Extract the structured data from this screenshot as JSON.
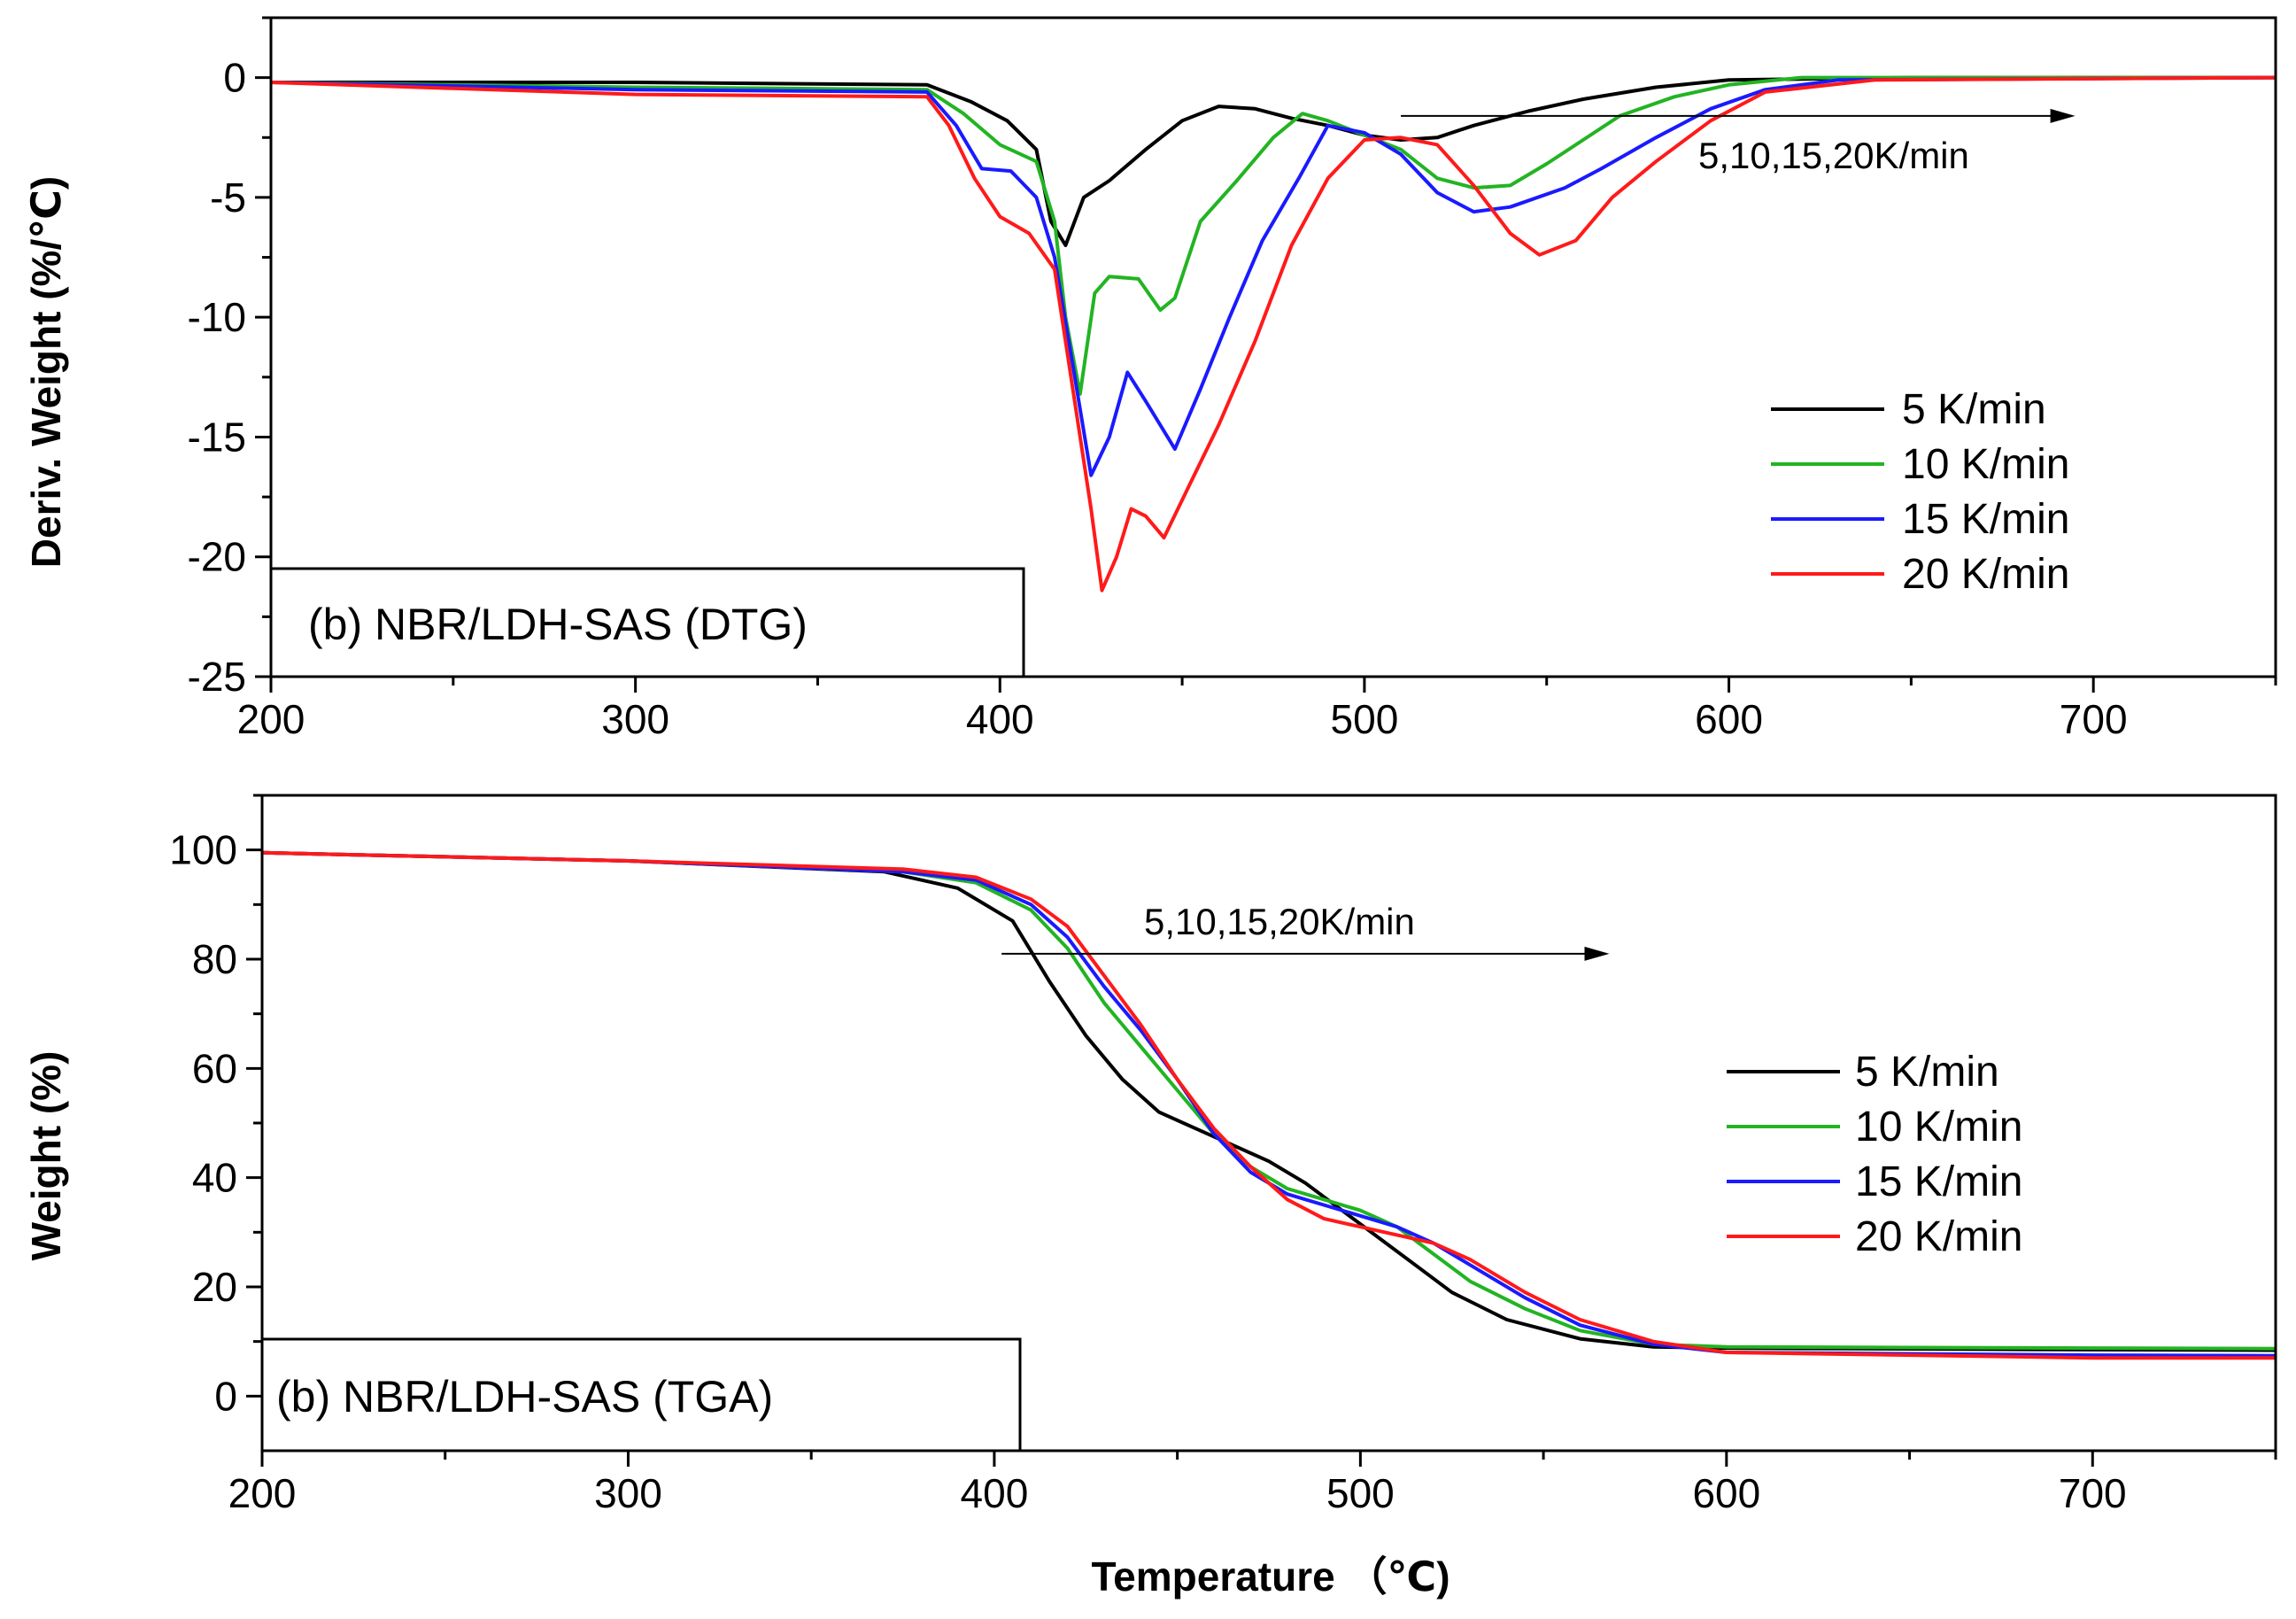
{
  "chart_data": [
    {
      "type": "line",
      "title": "(b) NBR/LDH-SAS (DTG)",
      "xlabel": "",
      "ylabel": "Deriv. Weight (%/℃)",
      "xlim": [
        200,
        750
      ],
      "ylim": [
        -25,
        2.5
      ],
      "xticks": [
        200,
        300,
        400,
        500,
        600,
        700
      ],
      "yticks": [
        0,
        -5,
        -10,
        -15,
        -20,
        -25
      ],
      "xtick_labels": [
        "200",
        "300",
        "400",
        "500",
        "600",
        "700"
      ],
      "ytick_labels": [
        "0",
        "-5",
        "-10",
        "-15",
        "-20",
        "-25"
      ],
      "grid": false,
      "legend_position": "right",
      "annotation": {
        "text": "5,10,15,20K/min",
        "arrow_from_x": 510,
        "arrow_to_x": 695,
        "arrow_y": -1.6
      },
      "series": [
        {
          "name": "5 K/min",
          "color": "#000000",
          "points": [
            [
              200,
              -0.2
            ],
            [
              300,
              -0.2
            ],
            [
              380,
              -0.3
            ],
            [
              392,
              -1.0
            ],
            [
              402,
              -1.8
            ],
            [
              410,
              -3.0
            ],
            [
              414,
              -6.0
            ],
            [
              418,
              -7.0
            ],
            [
              423,
              -5.0
            ],
            [
              430,
              -4.3
            ],
            [
              440,
              -3.0
            ],
            [
              450,
              -1.8
            ],
            [
              460,
              -1.2
            ],
            [
              470,
              -1.3
            ],
            [
              480,
              -1.7
            ],
            [
              490,
              -2.0
            ],
            [
              500,
              -2.4
            ],
            [
              510,
              -2.6
            ],
            [
              520,
              -2.5
            ],
            [
              530,
              -2.0
            ],
            [
              545,
              -1.4
            ],
            [
              560,
              -0.9
            ],
            [
              580,
              -0.4
            ],
            [
              600,
              -0.1
            ],
            [
              650,
              0
            ],
            [
              750,
              0
            ]
          ]
        },
        {
          "name": "10 K/min",
          "color": "#22b422",
          "points": [
            [
              200,
              -0.2
            ],
            [
              300,
              -0.4
            ],
            [
              380,
              -0.5
            ],
            [
              390,
              -1.5
            ],
            [
              400,
              -2.8
            ],
            [
              410,
              -3.5
            ],
            [
              415,
              -6.0
            ],
            [
              418,
              -10.0
            ],
            [
              422,
              -13.2
            ],
            [
              426,
              -9.0
            ],
            [
              430,
              -8.3
            ],
            [
              438,
              -8.4
            ],
            [
              444,
              -9.7
            ],
            [
              448,
              -9.2
            ],
            [
              455,
              -6.0
            ],
            [
              465,
              -4.3
            ],
            [
              475,
              -2.5
            ],
            [
              483,
              -1.5
            ],
            [
              490,
              -1.8
            ],
            [
              500,
              -2.4
            ],
            [
              510,
              -3.0
            ],
            [
              520,
              -4.2
            ],
            [
              530,
              -4.6
            ],
            [
              540,
              -4.5
            ],
            [
              550,
              -3.6
            ],
            [
              560,
              -2.6
            ],
            [
              570,
              -1.6
            ],
            [
              585,
              -0.8
            ],
            [
              600,
              -0.3
            ],
            [
              620,
              0
            ],
            [
              750,
              0
            ]
          ]
        },
        {
          "name": "15 K/min",
          "color": "#1a1aff",
          "points": [
            [
              200,
              -0.2
            ],
            [
              300,
              -0.5
            ],
            [
              380,
              -0.6
            ],
            [
              388,
              -2.0
            ],
            [
              395,
              -3.8
            ],
            [
              403,
              -3.9
            ],
            [
              410,
              -5.0
            ],
            [
              415,
              -7.5
            ],
            [
              420,
              -12.0
            ],
            [
              425,
              -16.6
            ],
            [
              430,
              -15.0
            ],
            [
              435,
              -12.3
            ],
            [
              440,
              -13.5
            ],
            [
              448,
              -15.5
            ],
            [
              455,
              -13.0
            ],
            [
              463,
              -10.0
            ],
            [
              472,
              -6.8
            ],
            [
              482,
              -4.2
            ],
            [
              490,
              -2.0
            ],
            [
              500,
              -2.3
            ],
            [
              510,
              -3.2
            ],
            [
              520,
              -4.8
            ],
            [
              530,
              -5.6
            ],
            [
              540,
              -5.4
            ],
            [
              555,
              -4.6
            ],
            [
              565,
              -3.8
            ],
            [
              580,
              -2.5
            ],
            [
              595,
              -1.3
            ],
            [
              610,
              -0.5
            ],
            [
              630,
              -0.1
            ],
            [
              750,
              0
            ]
          ]
        },
        {
          "name": "20 K/min",
          "color": "#ff1a1a",
          "points": [
            [
              200,
              -0.2
            ],
            [
              300,
              -0.7
            ],
            [
              380,
              -0.8
            ],
            [
              386,
              -2.0
            ],
            [
              393,
              -4.2
            ],
            [
              400,
              -5.8
            ],
            [
              408,
              -6.5
            ],
            [
              415,
              -8.0
            ],
            [
              420,
              -13.0
            ],
            [
              425,
              -18.0
            ],
            [
              428,
              -21.4
            ],
            [
              432,
              -20.0
            ],
            [
              436,
              -18.0
            ],
            [
              440,
              -18.3
            ],
            [
              445,
              -19.2
            ],
            [
              452,
              -17.0
            ],
            [
              460,
              -14.5
            ],
            [
              470,
              -11.0
            ],
            [
              480,
              -7.0
            ],
            [
              490,
              -4.2
            ],
            [
              500,
              -2.6
            ],
            [
              510,
              -2.5
            ],
            [
              520,
              -2.8
            ],
            [
              530,
              -4.5
            ],
            [
              540,
              -6.5
            ],
            [
              548,
              -7.4
            ],
            [
              558,
              -6.8
            ],
            [
              568,
              -5.0
            ],
            [
              580,
              -3.5
            ],
            [
              595,
              -1.8
            ],
            [
              610,
              -0.6
            ],
            [
              640,
              -0.1
            ],
            [
              750,
              0
            ]
          ]
        }
      ]
    },
    {
      "type": "line",
      "title": "(b) NBR/LDH-SAS (TGA)",
      "xlabel": "Temperature （℃)",
      "ylabel": "Weight (%)",
      "xlim": [
        200,
        750
      ],
      "ylim": [
        -10,
        110
      ],
      "xticks": [
        200,
        300,
        400,
        500,
        600,
        700
      ],
      "yticks": [
        0,
        20,
        40,
        60,
        80,
        100
      ],
      "xtick_labels": [
        "200",
        "300",
        "400",
        "500",
        "600",
        "700"
      ],
      "ytick_labels": [
        "0",
        "20",
        "40",
        "60",
        "80",
        "100"
      ],
      "grid": false,
      "legend_position": "right",
      "annotation": {
        "text": "5,10,15,20K/min",
        "arrow_from_x": 402,
        "arrow_to_x": 568,
        "arrow_y": 81
      },
      "series": [
        {
          "name": "5 K/min",
          "color": "#000000",
          "points": [
            [
              200,
              99.5
            ],
            [
              300,
              98
            ],
            [
              370,
              96
            ],
            [
              390,
              93
            ],
            [
              405,
              87
            ],
            [
              415,
              76
            ],
            [
              425,
              66
            ],
            [
              435,
              58
            ],
            [
              445,
              52
            ],
            [
              455,
              49
            ],
            [
              465,
              46
            ],
            [
              475,
              43
            ],
            [
              485,
              39
            ],
            [
              495,
              34
            ],
            [
              505,
              29
            ],
            [
              515,
              24
            ],
            [
              525,
              19
            ],
            [
              540,
              14
            ],
            [
              560,
              10.5
            ],
            [
              580,
              9
            ],
            [
              600,
              8.8
            ],
            [
              700,
              8.5
            ],
            [
              750,
              8.4
            ]
          ]
        },
        {
          "name": "10 K/min",
          "color": "#22b422",
          "points": [
            [
              200,
              99.5
            ],
            [
              300,
              98
            ],
            [
              375,
              96
            ],
            [
              395,
              94
            ],
            [
              410,
              89
            ],
            [
              420,
              82
            ],
            [
              430,
              72
            ],
            [
              440,
              64
            ],
            [
              450,
              56
            ],
            [
              460,
              48
            ],
            [
              470,
              42
            ],
            [
              480,
              38
            ],
            [
              490,
              36
            ],
            [
              500,
              34
            ],
            [
              510,
              31
            ],
            [
              520,
              26
            ],
            [
              530,
              21
            ],
            [
              545,
              16
            ],
            [
              560,
              12
            ],
            [
              580,
              9.5
            ],
            [
              600,
              9
            ],
            [
              700,
              8.8
            ],
            [
              750,
              8.7
            ]
          ]
        },
        {
          "name": "15 K/min",
          "color": "#1a1aff",
          "points": [
            [
              200,
              99.5
            ],
            [
              300,
              98
            ],
            [
              375,
              96
            ],
            [
              395,
              94.5
            ],
            [
              410,
              90
            ],
            [
              420,
              84
            ],
            [
              430,
              75
            ],
            [
              440,
              67
            ],
            [
              450,
              58
            ],
            [
              460,
              48
            ],
            [
              470,
              41
            ],
            [
              480,
              37
            ],
            [
              490,
              35
            ],
            [
              500,
              33
            ],
            [
              510,
              31
            ],
            [
              520,
              28
            ],
            [
              530,
              24
            ],
            [
              545,
              18
            ],
            [
              560,
              13
            ],
            [
              580,
              9.5
            ],
            [
              600,
              8
            ],
            [
              700,
              7.5
            ],
            [
              750,
              7.4
            ]
          ]
        },
        {
          "name": "20 K/min",
          "color": "#ff1a1a",
          "points": [
            [
              200,
              99.5
            ],
            [
              300,
              98
            ],
            [
              375,
              96.5
            ],
            [
              395,
              95
            ],
            [
              410,
              91
            ],
            [
              420,
              86
            ],
            [
              430,
              77
            ],
            [
              440,
              68
            ],
            [
              450,
              58
            ],
            [
              460,
              49
            ],
            [
              470,
              42
            ],
            [
              480,
              36
            ],
            [
              490,
              32.5
            ],
            [
              500,
              31
            ],
            [
              510,
              29.5
            ],
            [
              520,
              28
            ],
            [
              530,
              25
            ],
            [
              545,
              19
            ],
            [
              560,
              14
            ],
            [
              580,
              10
            ],
            [
              600,
              8
            ],
            [
              700,
              7
            ],
            [
              750,
              7
            ]
          ]
        }
      ]
    }
  ]
}
